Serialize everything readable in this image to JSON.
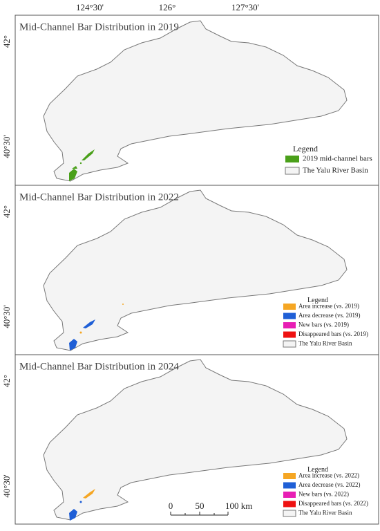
{
  "lon_labels": [
    "124°30'",
    "126°",
    "127°30'"
  ],
  "panels": [
    {
      "title": "Mid-Channel Bar Distribution in 2019",
      "lat_labels": [
        "42°",
        "40°30'"
      ],
      "legend": {
        "title": "Legend",
        "items": [
          {
            "label": "2019 mid-channel bars",
            "color": "#4aa01a"
          },
          {
            "label": "The Yalu River Basin",
            "color": "#f4f4f4"
          }
        ]
      }
    },
    {
      "title": "Mid-Channel Bar Distribution in 2022",
      "lat_labels": [
        "42°",
        "40°30'"
      ],
      "legend": {
        "title": "Legend",
        "items": [
          {
            "label": "Area increase (vs. 2019)",
            "color": "#f5a623"
          },
          {
            "label": "Area decrease (vs. 2019)",
            "color": "#1f5fd6"
          },
          {
            "label": "New bars (vs. 2019)",
            "color": "#e81eb4"
          },
          {
            "label": "Disappeared bars (vs. 2019)",
            "color": "#ee1111"
          },
          {
            "label": "The Yalu River Basin",
            "color": "#f4f4f4"
          }
        ]
      }
    },
    {
      "title": "Mid-Channel Bar Distribution in 2024",
      "lat_labels": [
        "42°",
        "40°30'"
      ],
      "legend": {
        "title": "Legend",
        "items": [
          {
            "label": "Area increase (vs. 2022)",
            "color": "#f5a623"
          },
          {
            "label": "Area decrease (vs. 2022)",
            "color": "#1f5fd6"
          },
          {
            "label": "New bars (vs. 2022)",
            "color": "#e81eb4"
          },
          {
            "label": "Disappeared bars (vs. 2022)",
            "color": "#ee1111"
          },
          {
            "label": "The Yalu River Basin",
            "color": "#f4f4f4"
          }
        ]
      }
    }
  ],
  "scale_bar": {
    "labels": [
      "0",
      "50",
      "100 km"
    ]
  }
}
